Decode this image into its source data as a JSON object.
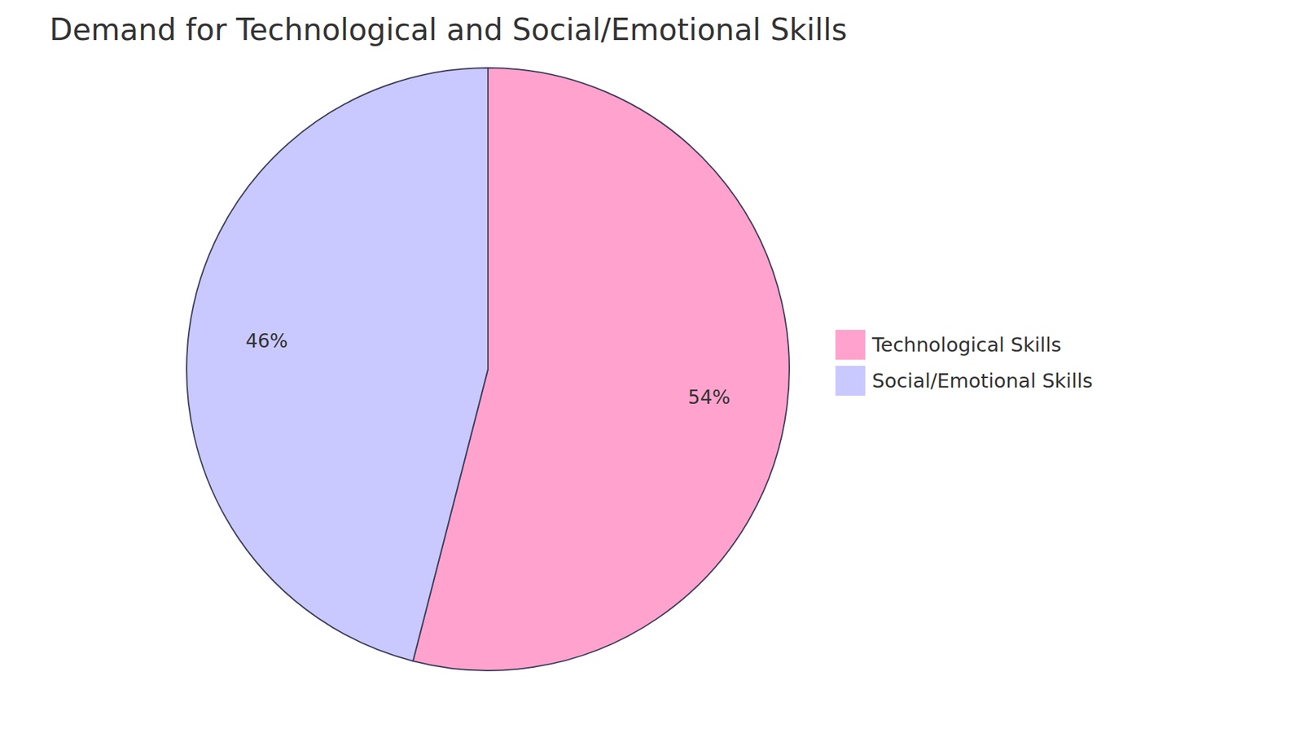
{
  "chart_data": {
    "type": "pie",
    "title": "Demand for Technological and Social/Emotional Skills",
    "categories": [
      "Technological Skills",
      "Social/Emotional Skills"
    ],
    "values": [
      54,
      46
    ],
    "value_labels": [
      "54%",
      "46%"
    ],
    "colors": [
      "#ffa3ce",
      "#c9c9ff"
    ],
    "data_labels": true,
    "legend": "right"
  }
}
